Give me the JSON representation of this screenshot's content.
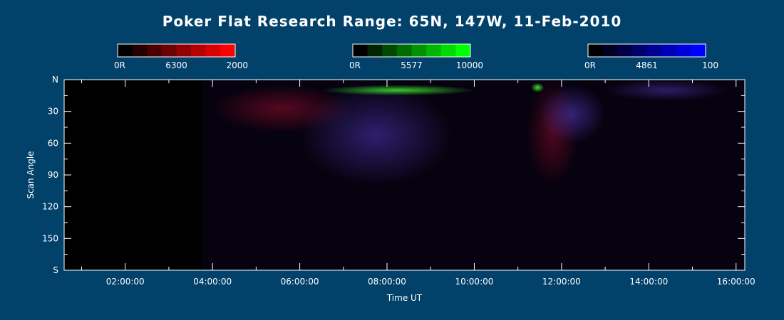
{
  "chart_data": {
    "type": "heatmap",
    "title": "Poker Flat Research Range: 65N, 147W, 11-Feb-2010",
    "xlabel": "Time UT",
    "ylabel": "Scan Angle",
    "x_range_hours": [
      0.6,
      16.2
    ],
    "x_ticks": [
      "02:00:00",
      "04:00:00",
      "06:00:00",
      "08:00:00",
      "10:00:00",
      "12:00:00",
      "14:00:00",
      "16:00:00"
    ],
    "x_tick_hours": [
      2,
      4,
      6,
      8,
      10,
      12,
      14,
      16
    ],
    "y_range": [
      0,
      180
    ],
    "y_ticks": [
      "N",
      "30",
      "60",
      "90",
      "120",
      "150",
      "S"
    ],
    "y_tick_values": [
      0,
      30,
      60,
      90,
      120,
      150,
      180
    ],
    "data_start_hours": 3.75,
    "colorbars": [
      {
        "name": "6300",
        "min_label": "0R",
        "max_label": "2000",
        "color": "#ff0000",
        "steps": 8
      },
      {
        "name": "5577",
        "min_label": "0R",
        "max_label": "10000",
        "color": "#00ff00",
        "steps": 8
      },
      {
        "name": "4861",
        "min_label": "0R",
        "max_label": "100",
        "color": "#0000ff",
        "steps": 8
      }
    ],
    "features": [
      {
        "channel": "red",
        "hours": [
          4.0,
          7.2
        ],
        "scan": [
          5,
          50
        ],
        "level": 0.5
      },
      {
        "channel": "red",
        "hours": [
          11.2,
          12.4
        ],
        "scan": [
          0,
          100
        ],
        "level": 0.45
      },
      {
        "channel": "blue",
        "hours": [
          6.0,
          9.5
        ],
        "scan": [
          5,
          100
        ],
        "level": 0.55
      },
      {
        "channel": "blue",
        "hours": [
          11.5,
          13.0
        ],
        "scan": [
          5,
          60
        ],
        "level": 0.6
      },
      {
        "channel": "blue",
        "hours": [
          13.0,
          15.8
        ],
        "scan": [
          0,
          20
        ],
        "level": 0.5
      },
      {
        "channel": "green",
        "hours": [
          6.5,
          10.0
        ],
        "scan": [
          5,
          15
        ],
        "level": 0.8
      },
      {
        "channel": "green",
        "hours": [
          11.3,
          11.6
        ],
        "scan": [
          3,
          12
        ],
        "level": 0.9
      }
    ]
  }
}
